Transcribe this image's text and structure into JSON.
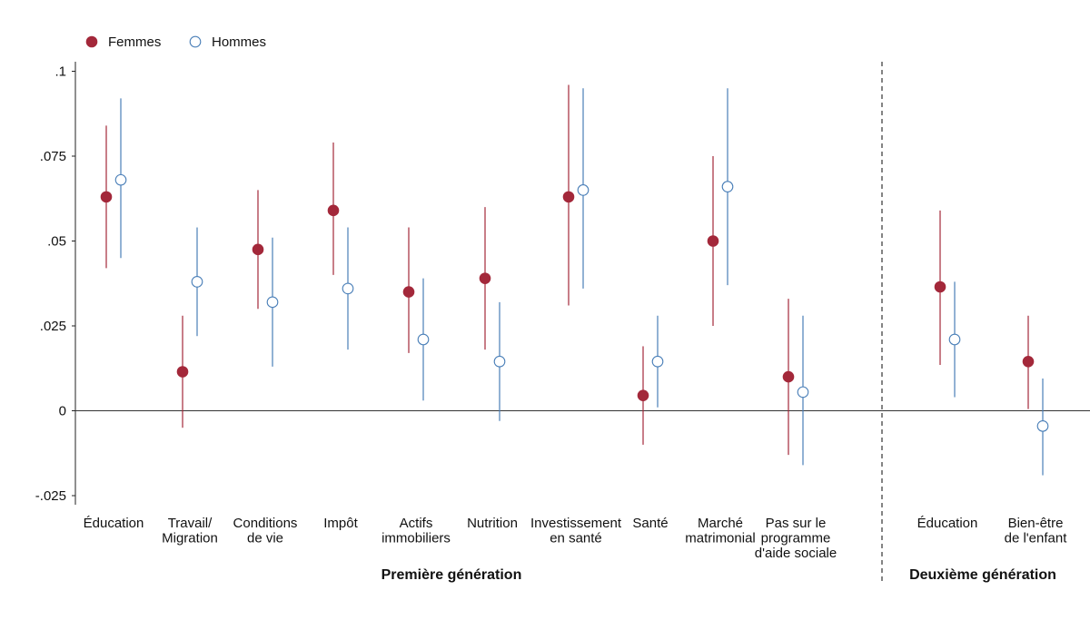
{
  "chart_data": {
    "type": "scatter",
    "y_ticks": [
      {
        "value": 0.1,
        "label": ".1"
      },
      {
        "value": 0.075,
        "label": ".075"
      },
      {
        "value": 0.05,
        "label": ".05"
      },
      {
        "value": 0.025,
        "label": ".025"
      },
      {
        "value": 0,
        "label": "0"
      },
      {
        "value": -0.025,
        "label": "-.025"
      }
    ],
    "ylim": [
      -0.028,
      0.103
    ],
    "legend_position": "top-left",
    "series": [
      {
        "name": "Femmes",
        "color": "#a3283a",
        "marker": "filled-circle"
      },
      {
        "name": "Hommes",
        "color": "#4a7fb8",
        "marker": "hollow-circle"
      }
    ],
    "groups": [
      {
        "label": "Première génération",
        "categories": [
          0,
          1,
          2,
          3,
          4,
          5,
          6,
          7,
          8,
          9
        ]
      },
      {
        "label": "Deuxième génération",
        "categories": [
          10,
          11
        ]
      }
    ],
    "categories": [
      {
        "lines": [
          "Éducation"
        ],
        "femmes": {
          "est": 0.063,
          "low": 0.042,
          "high": 0.084
        },
        "hommes": {
          "est": 0.068,
          "low": 0.045,
          "high": 0.092
        }
      },
      {
        "lines": [
          "Travail/",
          "Migration"
        ],
        "femmes": {
          "est": 0.0115,
          "low": -0.005,
          "high": 0.028
        },
        "hommes": {
          "est": 0.038,
          "low": 0.022,
          "high": 0.054
        }
      },
      {
        "lines": [
          "Conditions",
          "de vie"
        ],
        "femmes": {
          "est": 0.0475,
          "low": 0.03,
          "high": 0.065
        },
        "hommes": {
          "est": 0.032,
          "low": 0.013,
          "high": 0.051
        }
      },
      {
        "lines": [
          "Impôt"
        ],
        "femmes": {
          "est": 0.059,
          "low": 0.04,
          "high": 0.079
        },
        "hommes": {
          "est": 0.036,
          "low": 0.018,
          "high": 0.054
        }
      },
      {
        "lines": [
          "Actifs",
          "immobiliers"
        ],
        "femmes": {
          "est": 0.035,
          "low": 0.017,
          "high": 0.054
        },
        "hommes": {
          "est": 0.021,
          "low": 0.003,
          "high": 0.039
        }
      },
      {
        "lines": [
          "Nutrition"
        ],
        "femmes": {
          "est": 0.039,
          "low": 0.018,
          "high": 0.06
        },
        "hommes": {
          "est": 0.0145,
          "low": -0.003,
          "high": 0.032
        }
      },
      {
        "lines": [
          "Investissement",
          "en santé"
        ],
        "femmes": {
          "est": 0.063,
          "low": 0.031,
          "high": 0.096
        },
        "hommes": {
          "est": 0.065,
          "low": 0.036,
          "high": 0.095
        }
      },
      {
        "lines": [
          "Santé"
        ],
        "femmes": {
          "est": 0.0045,
          "low": -0.01,
          "high": 0.019
        },
        "hommes": {
          "est": 0.0145,
          "low": 0.001,
          "high": 0.028
        }
      },
      {
        "lines": [
          "Marché",
          "matrimonial"
        ],
        "femmes": {
          "est": 0.05,
          "low": 0.025,
          "high": 0.075
        },
        "hommes": {
          "est": 0.066,
          "low": 0.037,
          "high": 0.095
        }
      },
      {
        "lines": [
          "Pas sur le",
          "programme",
          "d'aide sociale"
        ],
        "femmes": {
          "est": 0.01,
          "low": -0.013,
          "high": 0.033
        },
        "hommes": {
          "est": 0.0055,
          "low": -0.016,
          "high": 0.028
        }
      },
      {
        "lines": [
          "Éducation"
        ],
        "femmes": {
          "est": 0.0365,
          "low": 0.0135,
          "high": 0.059
        },
        "hommes": {
          "est": 0.021,
          "low": 0.004,
          "high": 0.038
        }
      },
      {
        "lines": [
          "Bien-être",
          "de l'enfant"
        ],
        "femmes": {
          "est": 0.0145,
          "low": 0.0005,
          "high": 0.028
        },
        "hommes": {
          "est": -0.0045,
          "low": -0.019,
          "high": 0.0095
        }
      }
    ]
  }
}
